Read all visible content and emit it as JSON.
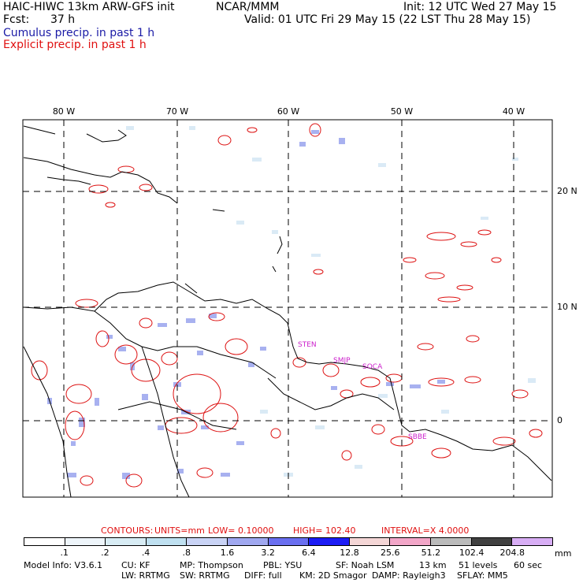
{
  "header": {
    "model_title": "HAIC-HIWC 13km ARW-GFS init",
    "org": "NCAR/MMM",
    "init": "Init: 12 UTC Wed 27 May 15",
    "fcst_label": "Fcst:",
    "fcst_value": "37 h",
    "valid": "Valid: 01 UTC Fri 29 May 15 (22 LST Thu 28 May 15)",
    "cumulus": "Cumulus precip. in past 1 h",
    "explicit": "Explicit precip. in past 1 h"
  },
  "map": {
    "lon_labels": [
      "80 W",
      "70 W",
      "60 W",
      "50 W",
      "40 W"
    ],
    "lat_labels": [
      "20 N",
      "10 N",
      "0"
    ],
    "station_labels": [
      "STEN",
      "SMJP",
      "SOCA",
      "SBBE"
    ],
    "colors": {
      "coast": "#000000",
      "explicit_contour": "#dd1111",
      "station": "#cc22cc"
    }
  },
  "contours": {
    "label": "CONTOURS:",
    "units": "UNITS=mm",
    "low": "LOW= 0.10000",
    "high": "HIGH= 102.40",
    "interval": "INTERVAL=X 4.0000"
  },
  "colorbar": {
    "labels": [
      ".1",
      ".2",
      ".4",
      ".8",
      "1.6",
      "3.2",
      "6.4",
      "12.8",
      "25.6",
      "51.2",
      "102.4",
      "204.8"
    ],
    "colors": [
      "#ffffff",
      "#eef5fa",
      "#d8ecf4",
      "#bfe0f0",
      "#c9d3f5",
      "#a0a8f0",
      "#6a6ff0",
      "#1c1cf5",
      "#f4d6d6",
      "#f2a6c8",
      "#bbbbbb",
      "#404040",
      "#d8aef5"
    ],
    "unit": "mm"
  },
  "model_info": {
    "line1": [
      "Model Info: V3.6.1",
      "CU: KF",
      "MP: Thompson",
      "PBL: YSU",
      "SF: Noah LSM",
      "13 km",
      "51 levels",
      "60 sec"
    ],
    "line2": [
      "LW: RRTMG",
      "SW: RRTMG",
      "DIFF: full",
      "KM: 2D Smagor",
      "DAMP: Rayleigh3",
      "SFLAY: MM5"
    ]
  }
}
